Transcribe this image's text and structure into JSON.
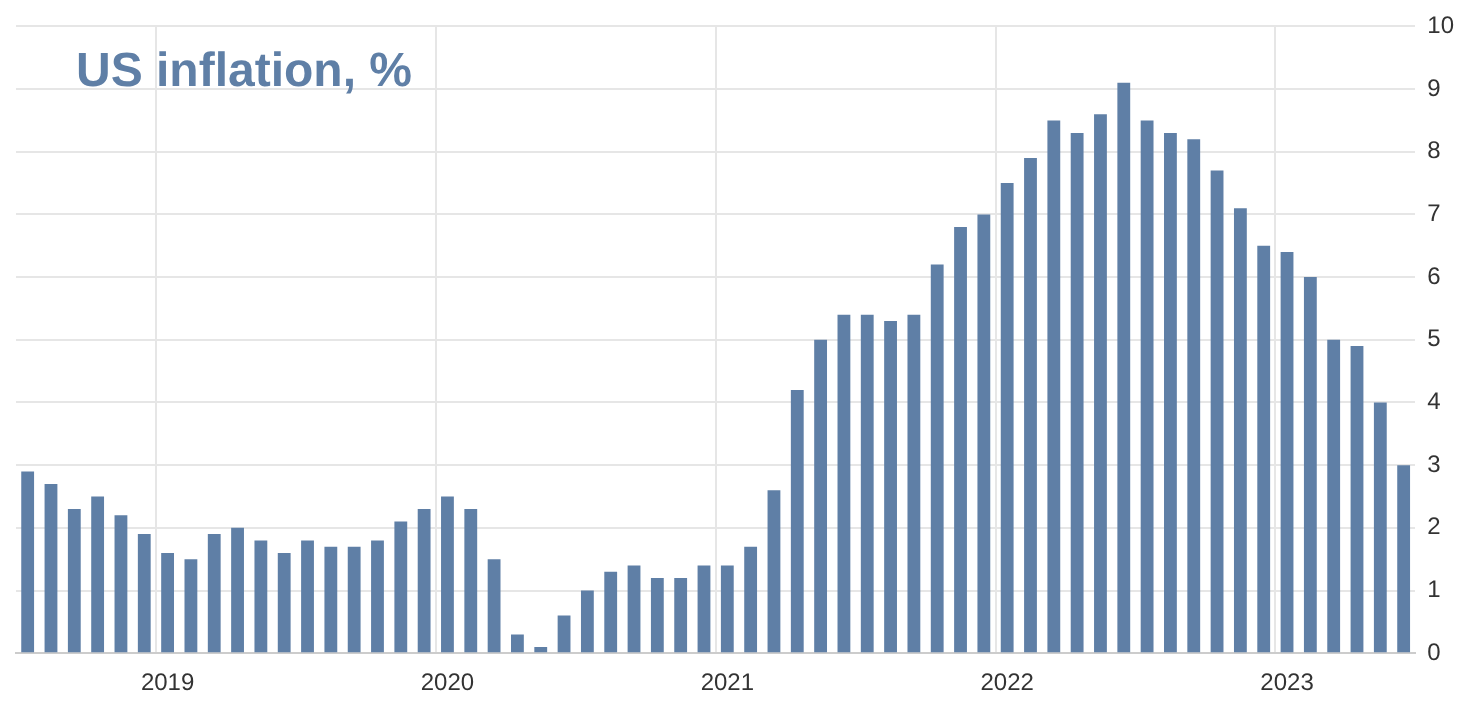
{
  "chart_data": {
    "type": "bar",
    "title": "US inflation, %",
    "categories": [
      null,
      null,
      null,
      null,
      null,
      null,
      "2019",
      null,
      null,
      null,
      null,
      null,
      null,
      null,
      null,
      null,
      null,
      null,
      "2020",
      null,
      null,
      null,
      null,
      null,
      null,
      null,
      null,
      null,
      null,
      null,
      "2021",
      null,
      null,
      null,
      null,
      null,
      null,
      null,
      null,
      null,
      null,
      null,
      "2022",
      null,
      null,
      null,
      null,
      null,
      null,
      null,
      null,
      null,
      null,
      null,
      "2023",
      null,
      null,
      null,
      null,
      null
    ],
    "values": [
      2.9,
      2.7,
      2.3,
      2.5,
      2.2,
      1.9,
      1.6,
      1.5,
      1.9,
      2.0,
      1.8,
      1.6,
      1.8,
      1.7,
      1.7,
      1.8,
      2.1,
      2.3,
      2.5,
      2.3,
      1.5,
      0.3,
      0.1,
      0.6,
      1.0,
      1.3,
      1.4,
      1.2,
      1.2,
      1.4,
      1.4,
      1.7,
      2.6,
      4.2,
      5.0,
      5.4,
      5.4,
      5.3,
      5.4,
      6.2,
      6.8,
      7.0,
      7.5,
      7.9,
      8.5,
      8.3,
      8.6,
      9.1,
      8.5,
      8.3,
      8.2,
      7.7,
      7.1,
      6.5,
      6.4,
      6.0,
      5.0,
      4.9,
      4.0,
      3.0
    ],
    "color": "#5f7fa6",
    "ylim": [
      0,
      10
    ],
    "yticks": [
      0,
      1,
      2,
      3,
      4,
      5,
      6,
      7,
      8,
      9,
      10
    ],
    "grid": true,
    "legend": false
  }
}
